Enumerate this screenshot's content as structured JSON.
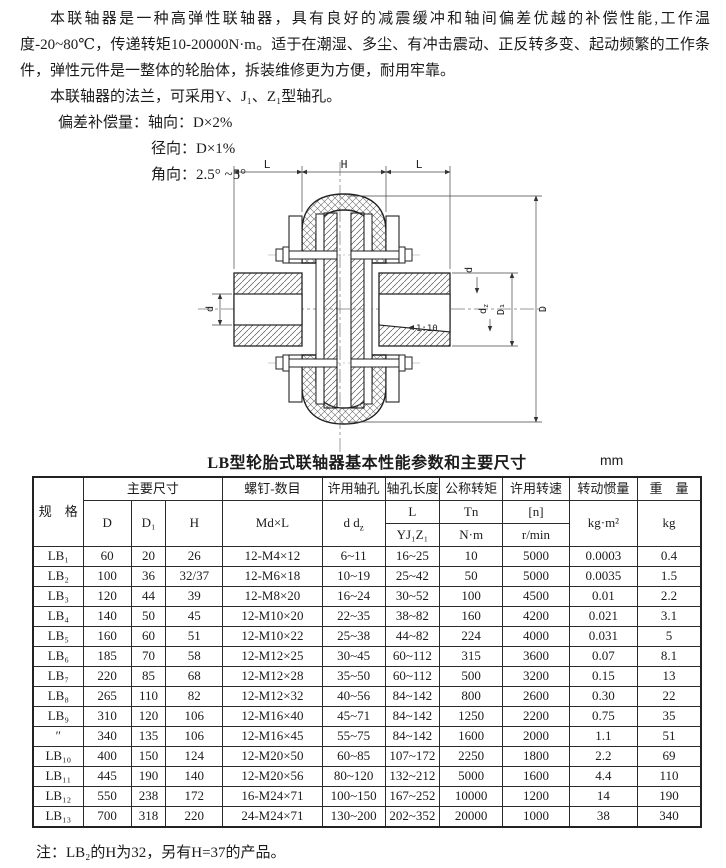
{
  "intro": {
    "p1": "本联轴器是一种高弹性联轴器，具有良好的减震缓冲和轴间偏差优越的补偿性能,工作温度-20~80℃，传递转矩10-20000N·m。适于在潮湿、多尘、有冲击震动、正反转多变、起动频繁的工作条件，弹性元件是一整体的轮胎体，拆装维修更为方便，耐用牢靠。",
    "p2": "本联轴器的法兰，可采用Y、J₁、Z₁型轴孔。",
    "comp_label": "偏差补偿量：",
    "comp_items": [
      {
        "label": "轴向：",
        "value": "D×2%"
      },
      {
        "label": "径向：",
        "value": "D×1%"
      },
      {
        "label": "角向：",
        "value": "2.5° ~5°"
      }
    ]
  },
  "drawing": {
    "dim_l_left": "L",
    "dim_h": "H",
    "dim_l_right": "L",
    "dim_d_left": "d",
    "dim_d_right": "d",
    "dim_dz_base": "d",
    "dim_dz_sub": "z",
    "dim_d1": "D₁",
    "dim_big_d": "D",
    "taper": "1:10"
  },
  "table": {
    "title": "LB型轮胎式联轴器基本性能参数和主要尺寸",
    "unit": "mm",
    "header": {
      "spec": "规　格",
      "main_dims": "主要尺寸",
      "col_d": "D",
      "col_d1": "D₁",
      "col_h": "H",
      "screws": "螺钉-数目",
      "screws_sub": "Md×L",
      "bore": "许用轴孔",
      "bore_d": "d d",
      "bore_dz_sub": "z",
      "bore_len": "轴孔长度",
      "bore_len_l": "L",
      "bore_len_types": "YJ₁Z₁",
      "torque": "公称转矩",
      "torque_sym": "Tn",
      "torque_unit": "N·m",
      "speed": "许用转速",
      "speed_sym": "[n]",
      "speed_unit": "r/min",
      "inertia": "转动惯量",
      "inertia_unit": "kg·m²",
      "weight": "重　量",
      "weight_unit": "kg"
    },
    "rows": [
      [
        "LB₁",
        "60",
        "20",
        "26",
        "12-M4×12",
        "6~11",
        "16~25",
        "10",
        "5000",
        "0.0003",
        "0.4"
      ],
      [
        "LB₂",
        "100",
        "36",
        "32/37",
        "12-M6×18",
        "10~19",
        "25~42",
        "50",
        "5000",
        "0.0035",
        "1.5"
      ],
      [
        "LB₃",
        "120",
        "44",
        "39",
        "12-M8×20",
        "16~24",
        "30~52",
        "100",
        "4500",
        "0.01",
        "2.2"
      ],
      [
        "LB₄",
        "140",
        "50",
        "45",
        "12-M10×20",
        "22~35",
        "38~82",
        "160",
        "4200",
        "0.021",
        "3.1"
      ],
      [
        "LB₅",
        "160",
        "60",
        "51",
        "12-M10×22",
        "25~38",
        "44~82",
        "224",
        "4000",
        "0.031",
        "5"
      ],
      [
        "LB₆",
        "185",
        "70",
        "58",
        "12-M12×25",
        "30~45",
        "60~112",
        "315",
        "3600",
        "0.07",
        "8.1"
      ],
      [
        "LB₇",
        "220",
        "85",
        "68",
        "12-M12×28",
        "35~50",
        "60~112",
        "500",
        "3200",
        "0.15",
        "13"
      ],
      [
        "LB₈",
        "265",
        "110",
        "82",
        "12-M12×32",
        "40~56",
        "84~142",
        "800",
        "2600",
        "0.30",
        "22"
      ],
      [
        "LB₉",
        "310",
        "120",
        "106",
        "12-M16×40",
        "45~71",
        "84~142",
        "1250",
        "2200",
        "0.75",
        "35"
      ],
      [
        "″",
        "340",
        "135",
        "106",
        "12-M16×45",
        "55~75",
        "84~142",
        "1600",
        "2000",
        "1.1",
        "51"
      ],
      [
        "LB₁₀",
        "400",
        "150",
        "124",
        "12-M20×50",
        "60~85",
        "107~172",
        "2250",
        "1800",
        "2.2",
        "69"
      ],
      [
        "LB₁₁",
        "445",
        "190",
        "140",
        "12-M20×56",
        "80~120",
        "132~212",
        "5000",
        "1600",
        "4.4",
        "110"
      ],
      [
        "LB₁₂",
        "550",
        "238",
        "172",
        "16-M24×71",
        "100~150",
        "167~252",
        "10000",
        "1200",
        "14",
        "190"
      ],
      [
        "LB₁₃",
        "700",
        "318",
        "220",
        "24-M24×71",
        "130~200",
        "202~352",
        "20000",
        "1000",
        "38",
        "340"
      ]
    ]
  },
  "note": "注：LB₂的H为32，另有H=37的产品。"
}
